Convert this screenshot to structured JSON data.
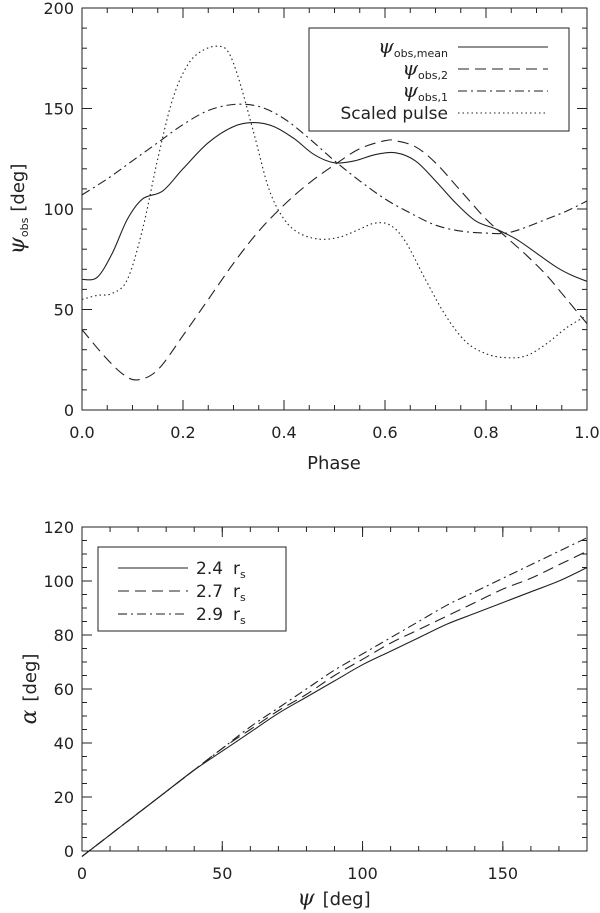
{
  "chart_data": [
    {
      "type": "line",
      "xlabel": "Phase",
      "ylabel": {
        "symbol": "ψ",
        "subscript": "obs",
        "unit": "[deg]"
      },
      "xlim": [
        0.0,
        1.0
      ],
      "ylim": [
        0,
        200
      ],
      "xticks": [
        "0.0",
        "0.2",
        "0.4",
        "0.6",
        "0.8",
        "1.0"
      ],
      "yticks": [
        "0",
        "50",
        "100",
        "150",
        "200"
      ],
      "legend_position": "top-right",
      "series": [
        {
          "name": {
            "symbol": "ψ",
            "subscript": "obs,mean"
          },
          "dash": "solid",
          "x": [
            0.0,
            0.03,
            0.06,
            0.09,
            0.12,
            0.16,
            0.2,
            0.25,
            0.3,
            0.34,
            0.38,
            0.42,
            0.46,
            0.5,
            0.54,
            0.58,
            0.62,
            0.66,
            0.7,
            0.74,
            0.78,
            0.82,
            0.86,
            0.9,
            0.94,
            0.97,
            1.0
          ],
          "y": [
            65,
            66,
            78,
            95,
            105,
            109,
            120,
            133,
            141,
            143,
            141,
            135,
            127,
            123,
            124,
            127,
            128,
            124,
            114,
            103,
            94,
            90,
            85,
            78,
            71,
            67,
            64
          ]
        },
        {
          "name": {
            "symbol": "ψ",
            "subscript": "obs,2"
          },
          "dash": "dashed",
          "x": [
            0.0,
            0.04,
            0.08,
            0.11,
            0.15,
            0.2,
            0.25,
            0.3,
            0.35,
            0.4,
            0.45,
            0.5,
            0.55,
            0.6,
            0.62,
            0.66,
            0.7,
            0.75,
            0.8,
            0.84,
            0.88,
            0.92,
            0.96,
            1.0
          ],
          "y": [
            40,
            28,
            18,
            15,
            20,
            37,
            55,
            73,
            89,
            102,
            113,
            122,
            130,
            134,
            134,
            131,
            123,
            109,
            95,
            86,
            77,
            67,
            55,
            43
          ]
        },
        {
          "name": {
            "symbol": "ψ",
            "subscript": "obs,1"
          },
          "dash": "dashdot",
          "x": [
            0.0,
            0.05,
            0.1,
            0.15,
            0.2,
            0.25,
            0.3,
            0.35,
            0.4,
            0.45,
            0.5,
            0.55,
            0.6,
            0.65,
            0.7,
            0.75,
            0.8,
            0.84,
            0.88,
            0.92,
            0.96,
            1.0
          ],
          "y": [
            107,
            115,
            124,
            133,
            142,
            149,
            152,
            151,
            145,
            135,
            124,
            114,
            105,
            98,
            92,
            89,
            88,
            88,
            91,
            95,
            99,
            104
          ]
        },
        {
          "name": "Scaled pulse",
          "dash": "dotted",
          "x": [
            0.0,
            0.03,
            0.06,
            0.09,
            0.12,
            0.15,
            0.18,
            0.21,
            0.24,
            0.27,
            0.29,
            0.31,
            0.34,
            0.37,
            0.4,
            0.43,
            0.47,
            0.51,
            0.55,
            0.58,
            0.61,
            0.64,
            0.68,
            0.72,
            0.76,
            0.8,
            0.84,
            0.88,
            0.92,
            0.96,
            1.0
          ],
          "y": [
            55,
            57,
            58,
            65,
            90,
            125,
            155,
            172,
            179,
            181,
            178,
            165,
            138,
            110,
            95,
            88,
            85,
            86,
            90,
            93,
            92,
            84,
            65,
            47,
            34,
            28,
            26,
            27,
            33,
            41,
            47
          ]
        }
      ]
    },
    {
      "type": "line",
      "xlabel": {
        "symbol": "ψ",
        "unit": "[deg]"
      },
      "ylabel": {
        "symbol": "α",
        "unit": "[deg]"
      },
      "xlim": [
        0,
        180
      ],
      "ylim": [
        0,
        120
      ],
      "xticks": [
        "0",
        "50",
        "100",
        "150"
      ],
      "yticks": [
        "0",
        "20",
        "40",
        "60",
        "80",
        "100",
        "120"
      ],
      "legend_position": "top-left",
      "series": [
        {
          "name": {
            "value": "2.4",
            "unit": "r",
            "subscript": "s"
          },
          "dash": "solid",
          "x": [
            0,
            10,
            20,
            30,
            40,
            50,
            60,
            70,
            80,
            90,
            100,
            110,
            120,
            130,
            140,
            150,
            160,
            170,
            180
          ],
          "y": [
            -2,
            6,
            14,
            22,
            30,
            37,
            44,
            51,
            57,
            63,
            69,
            74,
            79,
            84,
            88,
            92,
            96,
            100,
            105
          ]
        },
        {
          "name": {
            "value": "2.7",
            "unit": "r",
            "subscript": "s"
          },
          "dash": "dashed",
          "x": [
            0,
            10,
            20,
            30,
            40,
            50,
            60,
            70,
            80,
            90,
            100,
            110,
            120,
            130,
            140,
            150,
            160,
            170,
            180
          ],
          "y": [
            -2,
            6,
            14,
            22,
            30,
            38,
            45,
            52,
            58,
            65,
            71,
            77,
            82,
            87,
            92,
            97,
            101,
            106,
            111
          ]
        },
        {
          "name": {
            "value": "2.9",
            "unit": "r",
            "subscript": "s"
          },
          "dash": "dashdot",
          "x": [
            0,
            10,
            20,
            30,
            40,
            50,
            60,
            70,
            80,
            90,
            100,
            110,
            120,
            130,
            140,
            150,
            160,
            170,
            180
          ],
          "y": [
            -2,
            6,
            14,
            22,
            30,
            38,
            46,
            53,
            60,
            67,
            73,
            79,
            85,
            91,
            96,
            101,
            106,
            111,
            116
          ]
        }
      ]
    }
  ]
}
